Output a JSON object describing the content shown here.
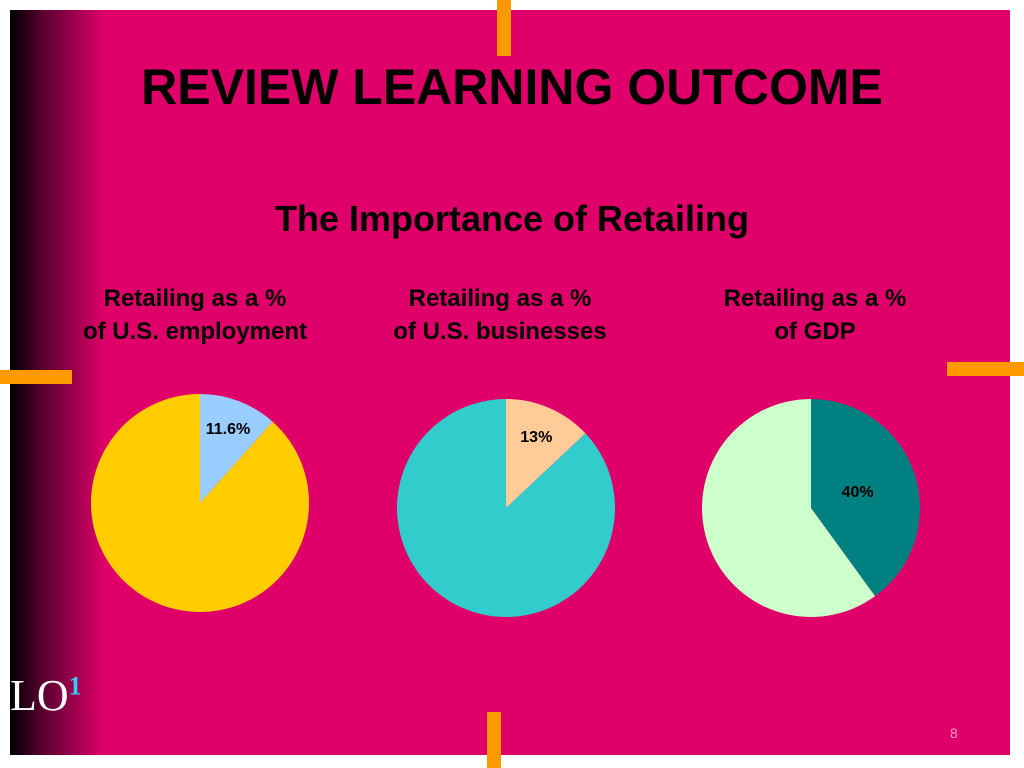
{
  "slide": {
    "title": "REVIEW LEARNING OUTCOME",
    "subtitle": "The Importance of Retailing",
    "lo": "LO",
    "lo_sup": "1",
    "page": "8"
  },
  "chart_data": [
    {
      "type": "pie",
      "title": "Retailing as a %\nof U.S. employment",
      "values": [
        11.6,
        88.4
      ],
      "value_labels": [
        "11.6%",
        null
      ],
      "colors": [
        "#99ccff",
        "#ffcc00"
      ]
    },
    {
      "type": "pie",
      "title": "Retailing as a %\nof U.S. businesses",
      "values": [
        13,
        87
      ],
      "value_labels": [
        "13%",
        null
      ],
      "colors": [
        "#ffcc99",
        "#33cccc"
      ]
    },
    {
      "type": "pie",
      "title": "Retailing as a %\nof GDP",
      "values": [
        40,
        60
      ],
      "value_labels": [
        "40%",
        null
      ],
      "colors": [
        "#008080",
        "#ccffcc"
      ]
    }
  ]
}
